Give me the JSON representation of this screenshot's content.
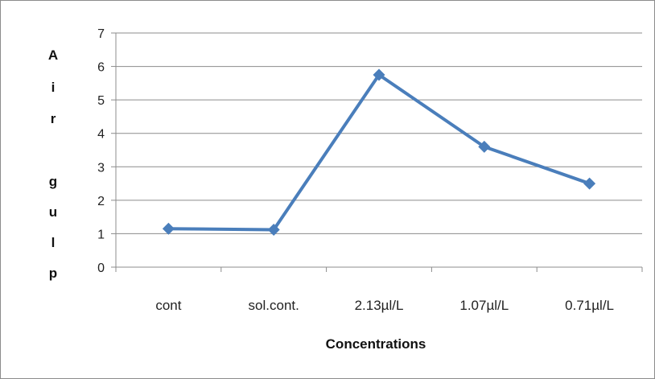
{
  "chart_data": {
    "type": "line",
    "categories": [
      "cont",
      "sol.cont.",
      "2.13µl/L",
      "1.07µl/L",
      "0.71µl/L"
    ],
    "series": [
      {
        "values": [
          1.15,
          1.12,
          5.75,
          3.6,
          2.5
        ],
        "color": "#4a7ebb",
        "marker": "diamond"
      }
    ],
    "xlabel": "Concentrations",
    "ylabel": "Air gulp",
    "ylabel_glyphs": [
      "A",
      "i",
      "r",
      "",
      "g",
      "u",
      "l",
      "p"
    ],
    "ylim": [
      0,
      7
    ],
    "yticks": [
      0,
      1,
      2,
      3,
      4,
      5,
      6,
      7
    ],
    "grid": true,
    "legend": "none"
  }
}
